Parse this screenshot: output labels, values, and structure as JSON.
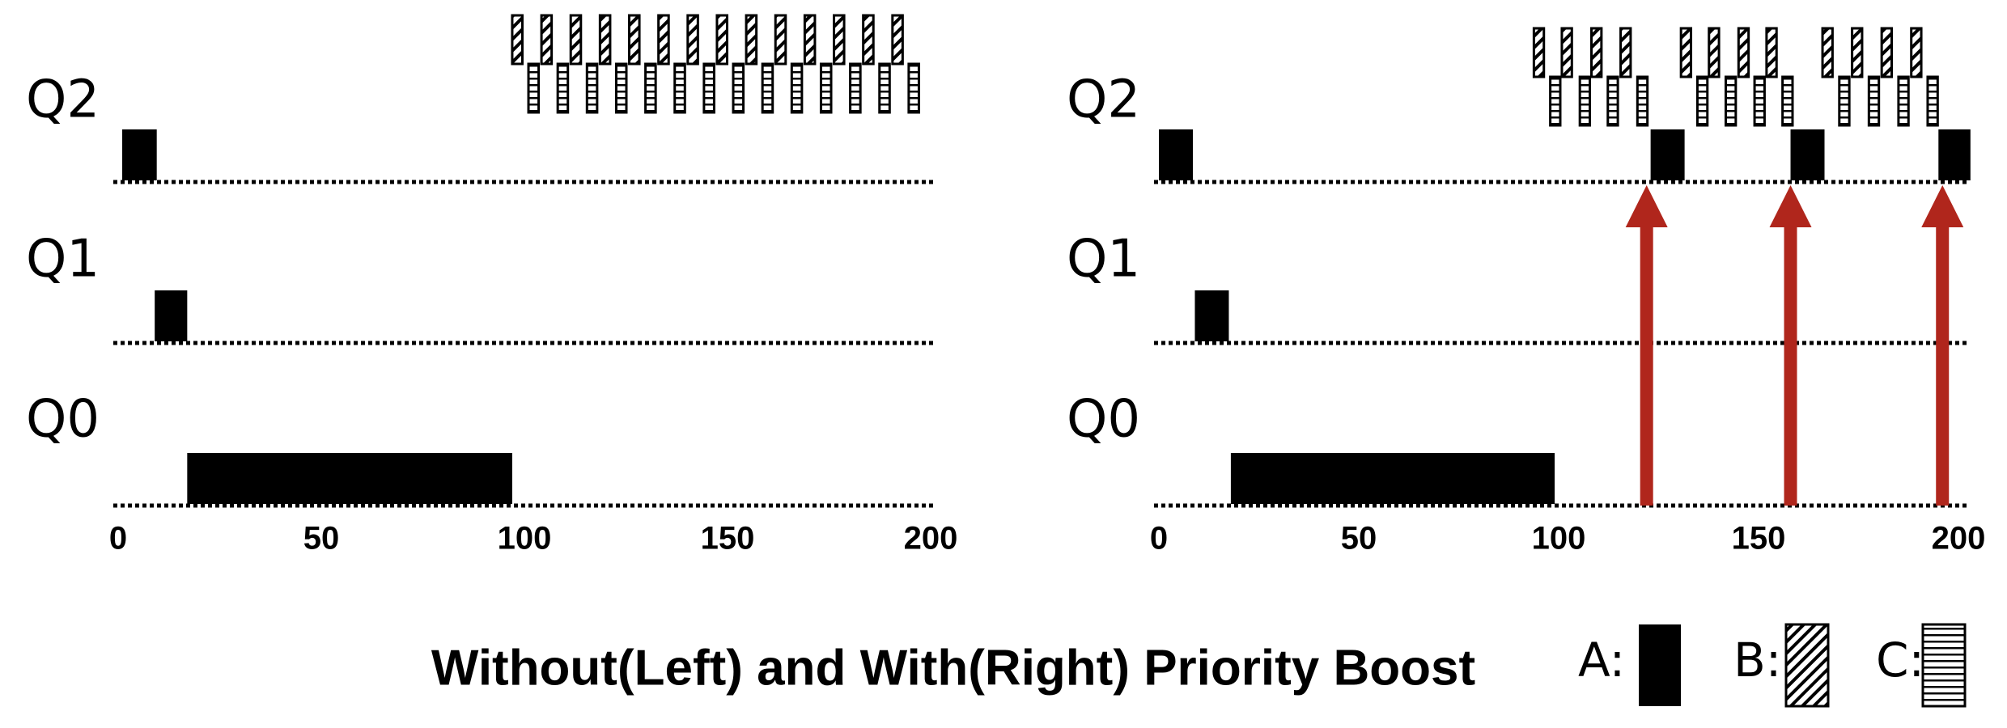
{
  "panels": [
    {
      "xlim": [
        0,
        200
      ],
      "xticks": [
        0,
        50,
        100,
        150,
        200
      ],
      "queues": [
        {
          "label": "Q2",
          "A": [
            [
              1,
              9.5
            ]
          ],
          "B": [
            [
              97,
              99.5
            ],
            [
              104.2,
              106.7
            ],
            [
              111.4,
              113.9
            ],
            [
              118.6,
              121.1
            ],
            [
              125.8,
              128.3
            ],
            [
              133,
              135.5
            ],
            [
              140.2,
              142.7
            ],
            [
              147.4,
              149.9
            ],
            [
              154.6,
              157.1
            ],
            [
              161.8,
              164.3
            ],
            [
              169,
              171.5
            ],
            [
              176.2,
              178.7
            ],
            [
              183.4,
              185.9
            ],
            [
              190.6,
              193.1
            ]
          ],
          "C": [
            [
              101,
              103.5
            ],
            [
              108.2,
              110.7
            ],
            [
              115.4,
              117.9
            ],
            [
              122.6,
              125.1
            ],
            [
              129.8,
              132.3
            ],
            [
              137,
              139.5
            ],
            [
              144.2,
              146.7
            ],
            [
              151.4,
              153.9
            ],
            [
              158.6,
              161.1
            ],
            [
              165.8,
              168.3
            ],
            [
              173,
              175.5
            ],
            [
              180.2,
              182.7
            ],
            [
              187.4,
              189.9
            ],
            [
              194.6,
              197.1
            ]
          ]
        },
        {
          "label": "Q1",
          "A": [
            [
              9,
              17
            ]
          ]
        },
        {
          "label": "Q0",
          "A": [
            [
              17,
              97
            ]
          ]
        }
      ]
    },
    {
      "xlim": [
        0,
        200
      ],
      "xticks": [
        0,
        50,
        100,
        150,
        200
      ],
      "boosts": [
        122,
        158,
        196
      ],
      "queues": [
        {
          "label": "Q2",
          "A": [
            [
              0,
              8.5
            ],
            [
              123,
              131.5
            ],
            [
              158,
              166.5
            ],
            [
              195,
              203
            ]
          ],
          "B": [
            [
              93.8,
              96.3
            ],
            [
              100.8,
              103.3
            ],
            [
              108.2,
              110.7
            ],
            [
              115.5,
              118
            ],
            [
              130.6,
              133.1
            ],
            [
              137.6,
              140.1
            ],
            [
              145,
              147.5
            ],
            [
              152,
              154.5
            ],
            [
              166,
              168.5
            ],
            [
              173.4,
              175.9
            ],
            [
              180.8,
              183.3
            ],
            [
              188.2,
              190.7
            ]
          ],
          "C": [
            [
              97.9,
              100.4
            ],
            [
              105.3,
              107.8
            ],
            [
              112.3,
              114.8
            ],
            [
              119.7,
              122.2
            ],
            [
              134.7,
              137.2
            ],
            [
              141.8,
              144.3
            ],
            [
              149,
              151.5
            ],
            [
              156,
              158.5
            ],
            [
              170.2,
              172.7
            ],
            [
              177.6,
              180.1
            ],
            [
              185,
              187.5
            ],
            [
              192.3,
              194.8
            ]
          ]
        },
        {
          "label": "Q1",
          "A": [
            [
              9,
              17.5
            ]
          ]
        },
        {
          "label": "Q0",
          "A": [
            [
              18,
              99
            ]
          ]
        }
      ]
    }
  ],
  "title": "Without(Left) and With(Right) Priority Boost",
  "legend": {
    "A": "A:",
    "B": "B:",
    "C": "C:"
  }
}
